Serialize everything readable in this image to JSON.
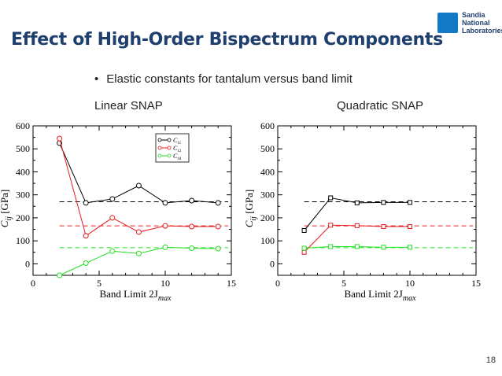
{
  "slide": {
    "title": "Effect of High-Order Bispectrum Components",
    "bullet": "Elastic constants for tantalum versus band limit",
    "page_number": "18",
    "logo": {
      "lines": [
        "Sandia",
        "National",
        "Laboratories"
      ]
    }
  },
  "chart_data": [
    {
      "type": "line",
      "title": "Linear SNAP",
      "xlabel": "Band Limit 2J",
      "xlabel_sub": "max",
      "ylabel": "C",
      "ylabel_sub": "ij",
      "ylabel_unit": "[GPa]",
      "xlim": [
        0,
        15
      ],
      "ylim": [
        -50,
        600
      ],
      "xticks": [
        0,
        5,
        10,
        15
      ],
      "yticks": [
        0,
        100,
        200,
        300,
        400,
        500,
        600
      ],
      "marker": "circle",
      "legend_position": "top-right",
      "series": [
        {
          "name": "C",
          "sub": "11",
          "color": "#000000",
          "x": [
            2,
            4,
            6,
            8,
            10,
            12,
            14
          ],
          "values": [
            525,
            265,
            282,
            340,
            265,
            275,
            265
          ]
        },
        {
          "name": "C",
          "sub": "12",
          "color": "#e8191e",
          "x": [
            2,
            4,
            6,
            8,
            10,
            12,
            14
          ],
          "values": [
            545,
            122,
            200,
            138,
            165,
            162,
            162
          ]
        },
        {
          "name": "C",
          "sub": "44",
          "color": "#22e022",
          "x": [
            2,
            4,
            6,
            8,
            10,
            12,
            14
          ],
          "values": [
            -50,
            3,
            55,
            45,
            72,
            68,
            66
          ]
        }
      ],
      "reference_lines": [
        {
          "color": "#000000",
          "y": 270
        },
        {
          "color": "#e8191e",
          "y": 165
        },
        {
          "color": "#22e022",
          "y": 70
        }
      ]
    },
    {
      "type": "line",
      "title": "Quadratic SNAP",
      "xlabel": "Band Limit 2J",
      "xlabel_sub": "max",
      "ylabel": "C",
      "ylabel_sub": "ij",
      "ylabel_unit": "[GPa]",
      "xlim": [
        0,
        15
      ],
      "ylim": [
        -50,
        600
      ],
      "xticks": [
        0,
        5,
        10,
        15
      ],
      "yticks": [
        0,
        100,
        200,
        300,
        400,
        500,
        600
      ],
      "marker": "square",
      "series": [
        {
          "color": "#000000",
          "x": [
            2,
            4,
            6,
            8,
            10
          ],
          "values": [
            145,
            287,
            265,
            267,
            267
          ]
        },
        {
          "color": "#e8191e",
          "x": [
            2,
            4,
            6,
            8,
            10
          ],
          "values": [
            50,
            168,
            166,
            162,
            162
          ]
        },
        {
          "color": "#22e022",
          "x": [
            2,
            4,
            6,
            8,
            10
          ],
          "values": [
            68,
            75,
            75,
            72,
            72
          ]
        }
      ],
      "reference_lines": [
        {
          "color": "#000000",
          "y": 270
        },
        {
          "color": "#e8191e",
          "y": 165
        },
        {
          "color": "#22e022",
          "y": 70
        }
      ]
    }
  ]
}
